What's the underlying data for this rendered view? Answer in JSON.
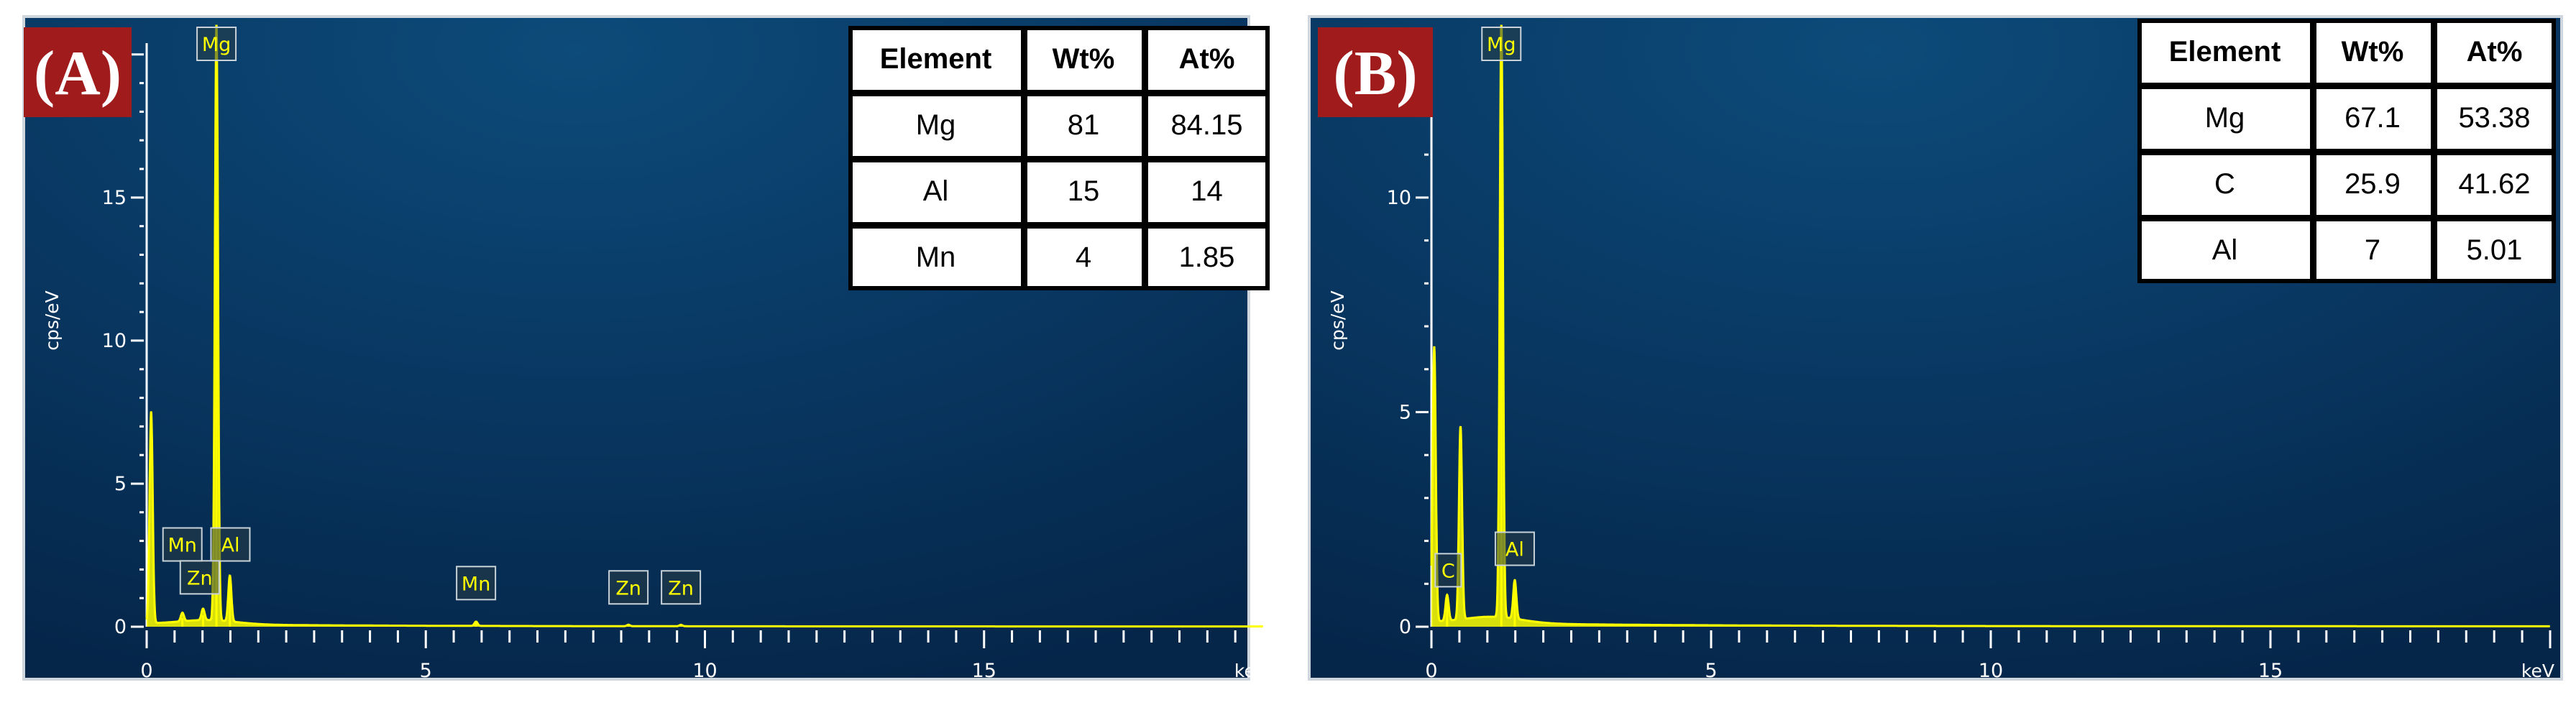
{
  "chart_data": [
    {
      "type": "line",
      "panel_label": "(A)",
      "ylabel": "cps/eV",
      "xlabel": "keV",
      "xlim": [
        0,
        20
      ],
      "ylim": [
        0,
        21
      ],
      "x_ticks": [
        "0",
        "5",
        "10",
        "15"
      ],
      "y_ticks": [
        "0",
        "5",
        "10",
        "15"
      ],
      "y_tick_values": [
        0,
        5,
        10,
        15
      ],
      "grid": false,
      "color": "#ffff00",
      "peaks": [
        {
          "element": "Mg",
          "x": 1.25,
          "y": 20.9
        },
        {
          "element": "Al",
          "x": 1.49,
          "y": 1.6
        },
        {
          "element": "Mn",
          "x": 0.64,
          "y": 0.3
        },
        {
          "element": "Zn",
          "x": 1.01,
          "y": 0.4
        },
        {
          "element": "Mn",
          "x": 5.9,
          "y": 0.15
        },
        {
          "element": "Zn",
          "x": 8.63,
          "y": 0.05
        },
        {
          "element": "Zn",
          "x": 9.57,
          "y": 0.05
        }
      ],
      "extra_peaks": [
        {
          "x": 0.08,
          "y": 7.4
        }
      ],
      "peak_labels": [
        {
          "text": "Mg",
          "x": 1.25,
          "y": 22.3
        },
        {
          "text": "Mn",
          "x": 0.64,
          "y": 2.85
        },
        {
          "text": "Al",
          "x": 1.5,
          "y": 2.85
        },
        {
          "text": "Zn",
          "x": 0.95,
          "y": 1.7
        },
        {
          "text": "Mn",
          "x": 5.9,
          "y": 1.5
        },
        {
          "text": "Zn",
          "x": 8.63,
          "y": 1.35
        },
        {
          "text": "Zn",
          "x": 9.57,
          "y": 1.35
        }
      ],
      "table": {
        "headers": [
          "Element",
          "Wt%",
          "At%"
        ],
        "rows": [
          [
            "Mg",
            "81",
            "84.15"
          ],
          [
            "Al",
            "15",
            "14"
          ],
          [
            "Mn",
            "4",
            "1.85"
          ]
        ]
      }
    },
    {
      "type": "line",
      "panel_label": "(B)",
      "ylabel": "cps/eV",
      "xlabel": "keV",
      "xlim": [
        0,
        20
      ],
      "ylim": [
        0,
        14
      ],
      "x_ticks": [
        "0",
        "5",
        "10",
        "15"
      ],
      "y_ticks": [
        "0",
        "5",
        "10"
      ],
      "y_tick_values": [
        0,
        5,
        10
      ],
      "grid": false,
      "color": "#ffff00",
      "peaks": [
        {
          "element": "Mg",
          "x": 1.25,
          "y": 14.0
        },
        {
          "element": "C",
          "x": 0.28,
          "y": 0.6
        },
        {
          "element": "Al",
          "x": 1.49,
          "y": 0.9
        }
      ],
      "extra_peaks": [
        {
          "x": 0.05,
          "y": 6.4
        },
        {
          "x": 0.52,
          "y": 4.5
        }
      ],
      "peak_labels": [
        {
          "text": "Mg",
          "x": 1.25,
          "y": 14.9
        },
        {
          "text": "C",
          "x": 0.3,
          "y": 1.3
        },
        {
          "text": "Al",
          "x": 1.49,
          "y": 1.8
        }
      ],
      "table": {
        "headers": [
          "Element",
          "Wt%",
          "At%"
        ],
        "rows": [
          [
            "Mg",
            "67.1",
            "53.38"
          ],
          [
            "C",
            "25.9",
            "41.62"
          ],
          [
            "Al",
            "7",
            "5.01"
          ]
        ]
      }
    }
  ]
}
